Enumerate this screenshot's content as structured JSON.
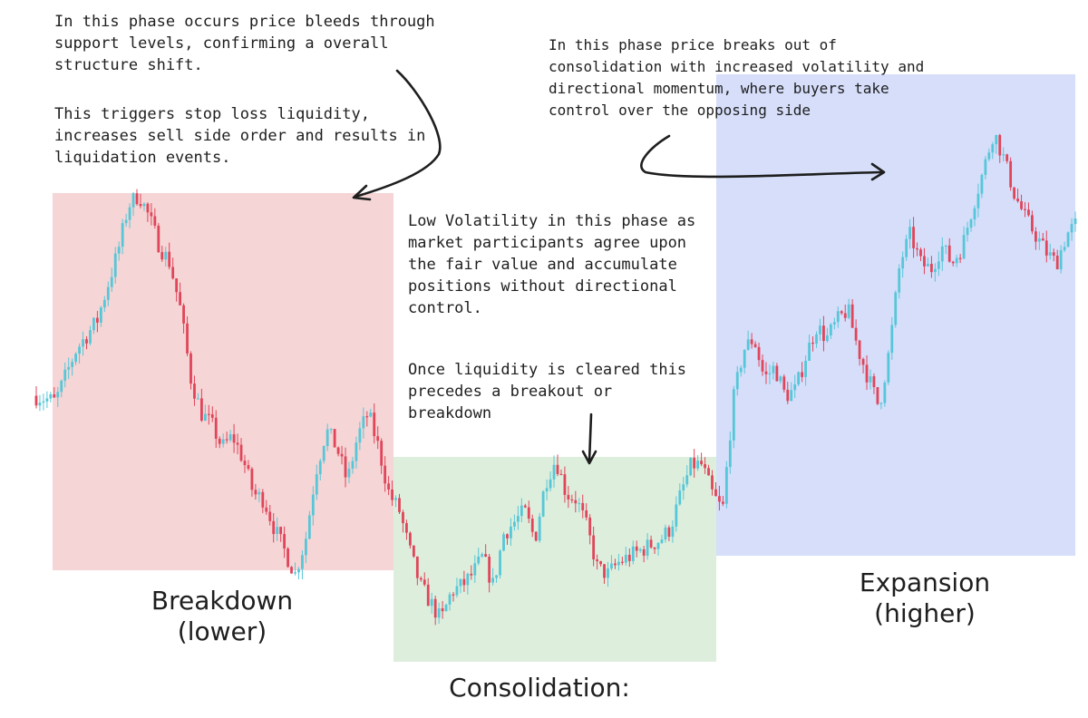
{
  "zones": [
    {
      "name": "breakdown",
      "color": "#f5d5d5"
    },
    {
      "name": "consolidation",
      "color": "#deeedd"
    },
    {
      "name": "expansion",
      "color": "#d6defa"
    }
  ],
  "candle_colors": {
    "up": "#56c7d8",
    "down": "#e0455a"
  },
  "labels": {
    "breakdown": "Breakdown\n(lower)",
    "consolidation": "Consolidation:",
    "expansion": "Expansion\n(higher)"
  },
  "annotations": {
    "breakdown_p1": "In this phase occurs price bleeds through\nsupport levels, confirming a overall\nstructure shift.",
    "breakdown_p2": "This triggers stop loss liquidity,\nincreases sell side order and results in\nliquidation events.",
    "expansion": "In this phase price breaks out of\nconsolidation with increased volatility and\ndirectional momentum, where buyers take\ncontrol over the opposing side",
    "consolidation_p1": "Low Volatility in this phase as\nmarket participants agree upon\nthe fair value and accumulate\npositions without directional\ncontrol.",
    "consolidation_p2": "Once liquidity is cleared this\nprecedes a breakout or\nbreakdown"
  },
  "chart_data": {
    "type": "line",
    "title": "",
    "xlabel": "",
    "ylabel": "",
    "grid": false,
    "legend": "none",
    "x_range": [
      0,
      100
    ],
    "y_range": [
      0,
      100
    ],
    "series": [
      {
        "points": [
          [
            0,
            47
          ],
          [
            2,
            46
          ],
          [
            4,
            55
          ],
          [
            6,
            60
          ],
          [
            8,
            72
          ],
          [
            9,
            80
          ],
          [
            10,
            82
          ],
          [
            11,
            78
          ],
          [
            12,
            73
          ],
          [
            13,
            70
          ],
          [
            14,
            62
          ],
          [
            15,
            50
          ],
          [
            16,
            44
          ],
          [
            17,
            42
          ],
          [
            18,
            38
          ],
          [
            19,
            40
          ],
          [
            20,
            36
          ],
          [
            21,
            30
          ],
          [
            22,
            29
          ],
          [
            23,
            24
          ],
          [
            24,
            20
          ],
          [
            25,
            16
          ],
          [
            26,
            22
          ],
          [
            27,
            34
          ],
          [
            28,
            41
          ],
          [
            29,
            38
          ],
          [
            30,
            32
          ],
          [
            31,
            40
          ],
          [
            32,
            44
          ],
          [
            33,
            38
          ],
          [
            34,
            30
          ],
          [
            35,
            27
          ],
          [
            36,
            20
          ],
          [
            37,
            14
          ],
          [
            38,
            11
          ],
          [
            39,
            8
          ],
          [
            40,
            13
          ],
          [
            41,
            14
          ],
          [
            42,
            16
          ],
          [
            43,
            19
          ],
          [
            44,
            14
          ],
          [
            45,
            23
          ],
          [
            46,
            25
          ],
          [
            47,
            27
          ],
          [
            48,
            22
          ],
          [
            49,
            32
          ],
          [
            50,
            36
          ],
          [
            51,
            30
          ],
          [
            52,
            29
          ],
          [
            53,
            24
          ],
          [
            54,
            17
          ],
          [
            55,
            16
          ],
          [
            56,
            18
          ],
          [
            57,
            19
          ],
          [
            58,
            20
          ],
          [
            59,
            21
          ],
          [
            60,
            22
          ],
          [
            61,
            24
          ],
          [
            62,
            30
          ],
          [
            63,
            35
          ],
          [
            64,
            35
          ],
          [
            65,
            30
          ],
          [
            66,
            27
          ],
          [
            67,
            46
          ],
          [
            68,
            55
          ],
          [
            69,
            57
          ],
          [
            70,
            50
          ],
          [
            71,
            52
          ],
          [
            72,
            47
          ],
          [
            73,
            48
          ],
          [
            74,
            54
          ],
          [
            75,
            59
          ],
          [
            76,
            57
          ],
          [
            77,
            60
          ],
          [
            78,
            62
          ],
          [
            79,
            55
          ],
          [
            80,
            50
          ],
          [
            81,
            45
          ],
          [
            82,
            55
          ],
          [
            83,
            70
          ],
          [
            84,
            75
          ],
          [
            85,
            70
          ],
          [
            86,
            69
          ],
          [
            87,
            73
          ],
          [
            88,
            70
          ],
          [
            89,
            73
          ],
          [
            90,
            80
          ],
          [
            91,
            86
          ],
          [
            92,
            93
          ],
          [
            93,
            88
          ],
          [
            94,
            82
          ],
          [
            95,
            78
          ],
          [
            96,
            75
          ],
          [
            97,
            72
          ],
          [
            98,
            70
          ],
          [
            99,
            75
          ],
          [
            100,
            77
          ]
        ]
      }
    ]
  }
}
